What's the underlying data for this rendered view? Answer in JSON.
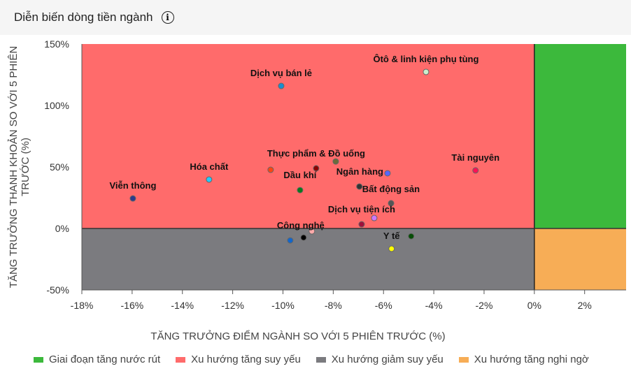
{
  "header": {
    "title": "Diễn biến dòng tiền ngành",
    "info_icon": "info-icon"
  },
  "chart_data": {
    "type": "scatter",
    "xlabel": "TĂNG TRƯỞNG ĐIỂM NGÀNH SO VỚI 5 PHIÊN TRƯỚC (%)",
    "ylabel_lines": [
      "TĂNG TRƯỞNG THANH KHOẢN SO VỚI 5 PHIÊN",
      "TRƯỚC (%)"
    ],
    "xlim": [
      -18,
      3.65
    ],
    "ylim": [
      -50,
      150
    ],
    "xticks": [
      -18,
      -16,
      -14,
      -12,
      -10,
      -8,
      -6,
      -4,
      -2,
      0,
      2
    ],
    "xtick_labels": [
      "-18%",
      "-16%",
      "-14%",
      "-12%",
      "-10%",
      "-8%",
      "-6%",
      "-4%",
      "-2%",
      "0%",
      "2%"
    ],
    "yticks": [
      150,
      100,
      50,
      0,
      -50
    ],
    "ytick_labels": [
      "150%",
      "100%",
      "50%",
      "0%",
      "-50%"
    ],
    "quadrant_colors": {
      "top_right": "#3cb93c",
      "top_left": "#ff6b6b",
      "bottom_left": "#7b7b7f",
      "bottom_right": "#f7ad56"
    },
    "points": [
      {
        "label": "Viễn thông",
        "x": -15.97,
        "y": 24.4,
        "color": "#2e3a8c"
      },
      {
        "label": "Hóa chất",
        "x": -12.94,
        "y": 39.8,
        "color": "#22ccff"
      },
      {
        "label": "Dịch vụ bán lẻ",
        "x": -10.07,
        "y": 115.9,
        "color": "#1a8fd0"
      },
      {
        "label": "",
        "x": -10.49,
        "y": 47.7,
        "color": "#ff4411"
      },
      {
        "label": "Thực phẩm & Đồ uống",
        "x": -8.68,
        "y": 48.9,
        "color": "#8b0000"
      },
      {
        "label": "",
        "x": -7.9,
        "y": 54.5,
        "color": "#6b6b3a"
      },
      {
        "label": "Dầu khí",
        "x": -9.32,
        "y": 31.2,
        "color": "#0a7a1a"
      },
      {
        "label": "Ngân hàng",
        "x": -5.84,
        "y": 44.9,
        "color": "#5566ff"
      },
      {
        "label": "Bất động sản",
        "x": -6.96,
        "y": 34.1,
        "color": "#333333"
      },
      {
        "label": "",
        "x": -5.7,
        "y": 20.5,
        "color": "#555555"
      },
      {
        "label": "Dịch vụ tiện ích",
        "x": -6.37,
        "y": 8.5,
        "color": "#cc77ff"
      },
      {
        "label": "",
        "x": -6.87,
        "y": 3.4,
        "color": "#a0103a"
      },
      {
        "label": "Công nghệ",
        "x": -8.85,
        "y": -2.3,
        "color": "#ffaaaa"
      },
      {
        "label": "",
        "x": -9.18,
        "y": -7.4,
        "color": "#000000"
      },
      {
        "label": "",
        "x": -9.71,
        "y": -9.7,
        "color": "#1166cc"
      },
      {
        "label": "Y tế",
        "x": -5.68,
        "y": -16.5,
        "color": "#ffff00"
      },
      {
        "label": "",
        "x": -4.9,
        "y": -6.3,
        "color": "#064d06"
      },
      {
        "label": "Tài nguyên",
        "x": -2.34,
        "y": 47.2,
        "color": "#ff1155"
      },
      {
        "label": "Ôtô & linh kiện phụ tùng",
        "x": -4.31,
        "y": 127.3,
        "color": "#cceecc"
      }
    ],
    "legend": [
      {
        "label": "Giai đoạn tăng nước rút",
        "color": "#3cb93c"
      },
      {
        "label": "Xu hướng tăng suy yếu",
        "color": "#ff6b6b"
      },
      {
        "label": "Xu hướng giảm suy yếu",
        "color": "#7b7b7f"
      },
      {
        "label": "Xu hướng tăng nghi ngờ",
        "color": "#f7ad56"
      }
    ],
    "legend_position": "bottom"
  }
}
